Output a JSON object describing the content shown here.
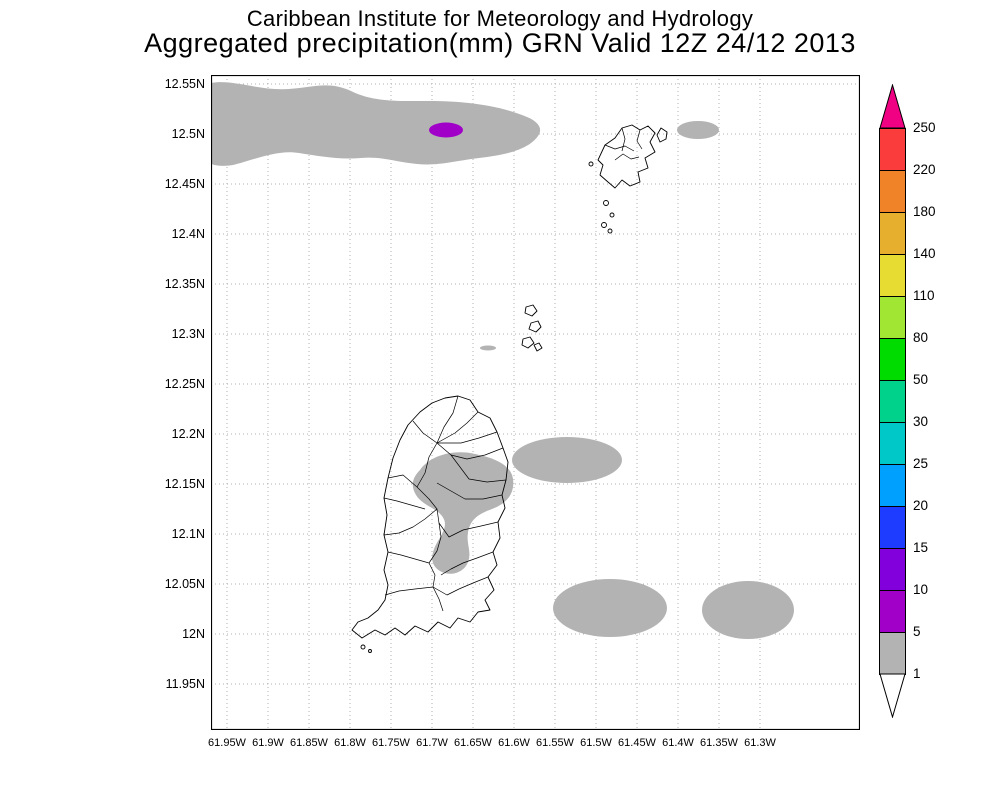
{
  "header": {
    "title_line1": "Caribbean Institute for Meteorology and Hydrology",
    "title_line2": "Aggregated precipitation(mm) GRN Valid 12Z 24/12 2013"
  },
  "axes": {
    "lat_labels_top_to_bottom": [
      "12.55N",
      "12.5N",
      "12.45N",
      "12.4N",
      "12.35N",
      "12.3N",
      "12.25N",
      "12.2N",
      "12.15N",
      "12.1N",
      "12.05N",
      "12N",
      "11.95N"
    ],
    "lon_labels_left_to_right": [
      "61.95W",
      "61.9W",
      "61.85W",
      "61.8W",
      "61.75W",
      "61.7W",
      "61.65W",
      "61.6W",
      "61.55W",
      "61.5W",
      "61.45W",
      "61.4W",
      "61.35W",
      "61.3W"
    ]
  },
  "colorbar": {
    "levels_top_to_bottom": [
      "250",
      "220",
      "180",
      "140",
      "110",
      "80",
      "50",
      "30",
      "25",
      "20",
      "15",
      "10",
      "5",
      "1"
    ],
    "segment_colors_top_to_bottom": [
      "#fa3c3c",
      "#f08228",
      "#e6af2d",
      "#e6dc32",
      "#a0e632",
      "#00dc00",
      "#00d28c",
      "#00c8c8",
      "#00a0ff",
      "#1e3cff",
      "#8200dc",
      "#a000c8",
      "#b3b3b3"
    ],
    "above_max_color": "#f00082",
    "below_min_color": "#ffffff"
  },
  "map": {
    "shade_1_5_color": "#b3b3b3",
    "shade_5_10_color": "#a000c8",
    "grid_color": "#b0b0b0",
    "coast_color": "#000000"
  }
}
